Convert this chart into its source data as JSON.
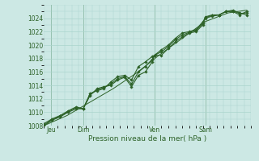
{
  "xlabel": "Pression niveau de la mer( hPa )",
  "bg_color": "#cce8e4",
  "line_color": "#2d6228",
  "grid_color": "#aad4cc",
  "ylim": [
    1008,
    1026
  ],
  "yticks": [
    1008,
    1010,
    1012,
    1014,
    1016,
    1018,
    1020,
    1022,
    1024
  ],
  "xlim": [
    0,
    9.0
  ],
  "day_positions": [
    0.3,
    1.7,
    4.8,
    7.0
  ],
  "day_labels": [
    "Jeu",
    "Dim",
    "Ven",
    "Sam"
  ],
  "vline_positions": [
    0.3,
    1.7,
    4.8,
    7.0
  ],
  "series": [
    {
      "x": [
        0.0,
        0.35,
        0.7,
        1.05,
        1.4,
        1.7,
        2.0,
        2.3,
        2.6,
        2.9,
        3.2,
        3.5,
        3.8,
        4.1,
        4.4,
        4.7,
        4.8,
        5.1,
        5.4,
        5.7,
        6.0,
        6.3,
        6.6,
        6.9,
        7.0,
        7.3,
        7.6,
        7.9,
        8.2,
        8.5,
        8.8
      ],
      "y": [
        1008.3,
        1009.0,
        1009.5,
        1010.2,
        1010.8,
        1010.5,
        1012.5,
        1013.5,
        1013.8,
        1014.0,
        1014.8,
        1015.2,
        1013.8,
        1015.5,
        1016.0,
        1017.5,
        1018.5,
        1018.5,
        1019.5,
        1020.5,
        1021.2,
        1021.8,
        1022.0,
        1023.0,
        1024.2,
        1024.5,
        1024.5,
        1025.0,
        1025.2,
        1024.8,
        1024.5
      ]
    },
    {
      "x": [
        0.0,
        0.35,
        0.7,
        1.05,
        1.4,
        1.7,
        2.0,
        2.3,
        2.6,
        2.9,
        3.2,
        3.5,
        3.8,
        4.1,
        4.4,
        4.7,
        4.8,
        5.1,
        5.4,
        5.7,
        6.0,
        6.3,
        6.6,
        6.9,
        7.0,
        7.3,
        7.6,
        7.9,
        8.2,
        8.5,
        8.8
      ],
      "y": [
        1008.0,
        1008.8,
        1009.3,
        1010.0,
        1010.5,
        1010.5,
        1012.8,
        1013.2,
        1013.5,
        1014.5,
        1015.3,
        1015.5,
        1014.8,
        1016.8,
        1017.5,
        1018.3,
        1018.5,
        1019.3,
        1020.0,
        1021.0,
        1021.8,
        1022.0,
        1022.3,
        1023.5,
        1024.0,
        1024.3,
        1024.5,
        1025.0,
        1025.0,
        1024.5,
        1025.0
      ]
    },
    {
      "x": [
        0.0,
        0.35,
        0.7,
        1.05,
        1.4,
        1.7,
        2.0,
        2.3,
        2.6,
        2.9,
        3.2,
        3.5,
        3.8,
        4.1,
        4.4,
        4.7,
        4.8,
        5.1,
        5.4,
        5.7,
        6.0,
        6.3,
        6.6,
        6.9,
        7.0,
        7.3,
        7.6,
        7.9,
        8.2,
        8.5,
        8.8
      ],
      "y": [
        1008.1,
        1008.9,
        1009.4,
        1010.1,
        1010.7,
        1010.5,
        1012.6,
        1013.3,
        1013.7,
        1014.2,
        1015.0,
        1015.3,
        1014.2,
        1016.0,
        1016.8,
        1017.9,
        1018.5,
        1019.0,
        1019.8,
        1020.8,
        1021.5,
        1021.9,
        1022.2,
        1023.2,
        1024.1,
        1024.4,
        1024.5,
        1025.0,
        1025.1,
        1024.7,
        1024.8
      ]
    },
    {
      "x": [
        0.0,
        1.0,
        2.0,
        3.0,
        4.0,
        5.0,
        6.0,
        7.0,
        8.0,
        8.8
      ],
      "y": [
        1008.0,
        1009.5,
        1011.5,
        1013.5,
        1015.8,
        1018.5,
        1021.0,
        1023.5,
        1024.8,
        1025.2
      ],
      "smooth": true
    }
  ]
}
